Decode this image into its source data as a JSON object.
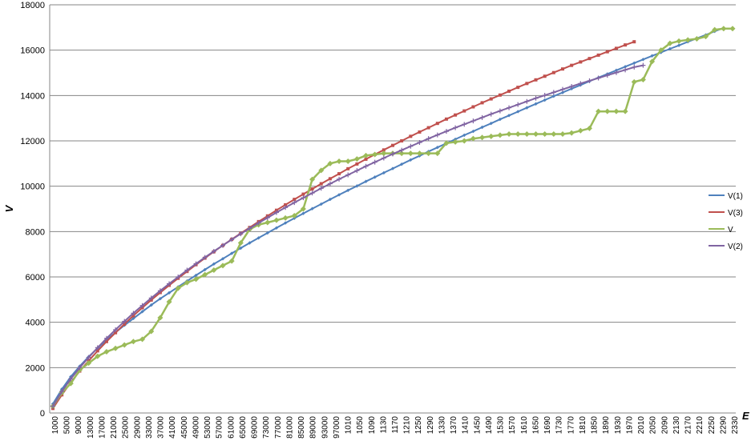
{
  "chart_data": {
    "type": "line",
    "title": "",
    "xlabel": "E",
    "ylabel": "V",
    "ylim": [
      0,
      18000
    ],
    "yticks": [
      0,
      2000,
      4000,
      6000,
      8000,
      10000,
      12000,
      14000,
      16000,
      18000
    ],
    "grid": "horizontal",
    "legend_position": "right",
    "x_tick_labels": [
      "1000",
      "5000",
      "9000",
      "13000",
      "17000",
      "21000",
      "25000",
      "29000",
      "33000",
      "37000",
      "41000",
      "45000",
      "49000",
      "53000",
      "57000",
      "61000",
      "65000",
      "69000",
      "73000",
      "77000",
      "81000",
      "85000",
      "89000",
      "93000",
      "97000",
      "1010",
      "1050",
      "1090",
      "1130",
      "1170",
      "1210",
      "1250",
      "1290",
      "1330",
      "1370",
      "1410",
      "1450",
      "1490",
      "1530",
      "1570",
      "1610",
      "1650",
      "1690",
      "1730",
      "1770",
      "1810",
      "1850",
      "1890",
      "1930",
      "1970",
      "2010",
      "2050",
      "2090",
      "2130",
      "2170",
      "2210",
      "2250",
      "2290",
      "2330"
    ],
    "series": [
      {
        "name": "V(1)",
        "color": "#4f81bd",
        "points": [
          [
            0,
            400
          ],
          [
            1,
            1050
          ],
          [
            2,
            1600
          ],
          [
            3,
            2060
          ],
          [
            4,
            2480
          ],
          [
            5,
            2860
          ],
          [
            6,
            3220
          ],
          [
            7,
            3550
          ],
          [
            8,
            3870
          ],
          [
            9,
            4170
          ],
          [
            10,
            4470
          ],
          [
            11,
            4760
          ],
          [
            12,
            5040
          ],
          [
            13,
            5300
          ],
          [
            14,
            5560
          ],
          [
            15,
            5820
          ],
          [
            16,
            6070
          ],
          [
            17,
            6320
          ],
          [
            18,
            6570
          ],
          [
            19,
            6800
          ],
          [
            20,
            7040
          ],
          [
            21,
            7270
          ],
          [
            22,
            7500
          ],
          [
            23,
            7720
          ],
          [
            24,
            7940
          ],
          [
            25,
            8160
          ],
          [
            26,
            8380
          ],
          [
            27,
            8590
          ],
          [
            28,
            8800
          ],
          [
            29,
            9010
          ],
          [
            30,
            9210
          ],
          [
            31,
            9420
          ],
          [
            32,
            9620
          ],
          [
            33,
            9820
          ],
          [
            34,
            10010
          ],
          [
            35,
            10210
          ],
          [
            36,
            10400
          ],
          [
            37,
            10590
          ],
          [
            38,
            10780
          ],
          [
            39,
            10970
          ],
          [
            40,
            11160
          ],
          [
            41,
            11340
          ],
          [
            42,
            11530
          ],
          [
            43,
            11710
          ],
          [
            44,
            11890
          ],
          [
            45,
            12070
          ],
          [
            46,
            12250
          ],
          [
            47,
            12420
          ],
          [
            48,
            12600
          ],
          [
            49,
            12770
          ],
          [
            50,
            12950
          ],
          [
            51,
            13120
          ],
          [
            52,
            13290
          ],
          [
            53,
            13460
          ],
          [
            54,
            13630
          ],
          [
            55,
            13800
          ],
          [
            56,
            13970
          ],
          [
            57,
            14130
          ],
          [
            58,
            14300
          ],
          [
            59,
            14460
          ],
          [
            60,
            14630
          ],
          [
            61,
            14790
          ],
          [
            62,
            14950
          ],
          [
            63,
            15110
          ],
          [
            64,
            15270
          ],
          [
            65,
            15430
          ],
          [
            66,
            15590
          ],
          [
            67,
            15750
          ],
          [
            68,
            15900
          ],
          [
            69,
            16060
          ],
          [
            70,
            16210
          ],
          [
            71,
            16370
          ],
          [
            72,
            16520
          ],
          [
            73,
            16670
          ],
          [
            74,
            16830
          ],
          [
            75,
            16980
          ]
        ]
      },
      {
        "name": "V(3)",
        "color": "#c0504d",
        "points": [
          [
            0,
            200
          ],
          [
            1,
            800
          ],
          [
            2,
            1350
          ],
          [
            3,
            1850
          ],
          [
            4,
            2300
          ],
          [
            5,
            2740
          ],
          [
            6,
            3150
          ],
          [
            7,
            3540
          ],
          [
            8,
            3920
          ],
          [
            9,
            4290
          ],
          [
            10,
            4640
          ],
          [
            11,
            4980
          ],
          [
            12,
            5310
          ],
          [
            13,
            5630
          ],
          [
            14,
            5940
          ],
          [
            15,
            6240
          ],
          [
            16,
            6540
          ],
          [
            17,
            6830
          ],
          [
            18,
            7110
          ],
          [
            19,
            7390
          ],
          [
            20,
            7660
          ],
          [
            21,
            7920
          ],
          [
            22,
            8180
          ],
          [
            23,
            8440
          ],
          [
            24,
            8690
          ],
          [
            25,
            8940
          ],
          [
            26,
            9180
          ],
          [
            27,
            9420
          ],
          [
            28,
            9650
          ],
          [
            29,
            9880
          ],
          [
            30,
            10110
          ],
          [
            31,
            10330
          ],
          [
            32,
            10550
          ],
          [
            33,
            10770
          ],
          [
            34,
            10980
          ],
          [
            35,
            11190
          ],
          [
            36,
            11400
          ],
          [
            37,
            11600
          ],
          [
            38,
            11800
          ],
          [
            39,
            12000
          ],
          [
            40,
            12200
          ],
          [
            41,
            12390
          ],
          [
            42,
            12580
          ],
          [
            43,
            12770
          ],
          [
            44,
            12960
          ],
          [
            45,
            13140
          ],
          [
            46,
            13320
          ],
          [
            47,
            13500
          ],
          [
            48,
            13680
          ],
          [
            49,
            13850
          ],
          [
            50,
            14020
          ],
          [
            51,
            14190
          ],
          [
            52,
            14360
          ],
          [
            53,
            14530
          ],
          [
            54,
            14690
          ],
          [
            55,
            14850
          ],
          [
            56,
            15010
          ],
          [
            57,
            15170
          ],
          [
            58,
            15330
          ],
          [
            59,
            15480
          ],
          [
            60,
            15630
          ],
          [
            61,
            15780
          ],
          [
            62,
            15930
          ],
          [
            63,
            16080
          ],
          [
            64,
            16230
          ],
          [
            65,
            16370
          ]
        ]
      },
      {
        "name": "V",
        "color": "#9bbb59",
        "points": [
          [
            0,
            300
          ],
          [
            1,
            900
          ],
          [
            2,
            1300
          ],
          [
            3,
            1900
          ],
          [
            4,
            2200
          ],
          [
            5,
            2500
          ],
          [
            6,
            2700
          ],
          [
            7,
            2850
          ],
          [
            8,
            3000
          ],
          [
            9,
            3150
          ],
          [
            10,
            3250
          ],
          [
            11,
            3600
          ],
          [
            12,
            4200
          ],
          [
            13,
            4900
          ],
          [
            14,
            5500
          ],
          [
            15,
            5750
          ],
          [
            16,
            5900
          ],
          [
            17,
            6100
          ],
          [
            18,
            6300
          ],
          [
            19,
            6500
          ],
          [
            20,
            6700
          ],
          [
            21,
            7500
          ],
          [
            22,
            8100
          ],
          [
            23,
            8300
          ],
          [
            24,
            8400
          ],
          [
            25,
            8500
          ],
          [
            26,
            8600
          ],
          [
            27,
            8700
          ],
          [
            28,
            9000
          ],
          [
            29,
            10300
          ],
          [
            30,
            10700
          ],
          [
            31,
            11000
          ],
          [
            32,
            11100
          ],
          [
            33,
            11100
          ],
          [
            34,
            11200
          ],
          [
            35,
            11350
          ],
          [
            36,
            11400
          ],
          [
            37,
            11450
          ],
          [
            38,
            11450
          ],
          [
            39,
            11450
          ],
          [
            40,
            11450
          ],
          [
            41,
            11450
          ],
          [
            42,
            11450
          ],
          [
            43,
            11450
          ],
          [
            44,
            11900
          ],
          [
            45,
            11950
          ],
          [
            46,
            12000
          ],
          [
            47,
            12100
          ],
          [
            48,
            12150
          ],
          [
            49,
            12200
          ],
          [
            50,
            12250
          ],
          [
            51,
            12300
          ],
          [
            52,
            12300
          ],
          [
            53,
            12300
          ],
          [
            54,
            12300
          ],
          [
            55,
            12300
          ],
          [
            56,
            12300
          ],
          [
            57,
            12300
          ],
          [
            58,
            12350
          ],
          [
            59,
            12450
          ],
          [
            60,
            12550
          ],
          [
            61,
            13300
          ],
          [
            62,
            13300
          ],
          [
            63,
            13300
          ],
          [
            64,
            13300
          ],
          [
            65,
            14600
          ],
          [
            66,
            14700
          ],
          [
            67,
            15500
          ],
          [
            68,
            16000
          ],
          [
            69,
            16300
          ],
          [
            70,
            16400
          ],
          [
            71,
            16450
          ],
          [
            72,
            16500
          ],
          [
            73,
            16600
          ],
          [
            74,
            16900
          ],
          [
            75,
            16950
          ],
          [
            76,
            16950
          ]
        ]
      },
      {
        "name": "V(2)",
        "color": "#8064a2",
        "points": [
          [
            0,
            300
          ],
          [
            1,
            950
          ],
          [
            2,
            1500
          ],
          [
            3,
            2000
          ],
          [
            4,
            2450
          ],
          [
            5,
            2880
          ],
          [
            6,
            3290
          ],
          [
            7,
            3670
          ],
          [
            8,
            4040
          ],
          [
            9,
            4400
          ],
          [
            10,
            4740
          ],
          [
            11,
            5070
          ],
          [
            12,
            5390
          ],
          [
            13,
            5700
          ],
          [
            14,
            6000
          ],
          [
            15,
            6300
          ],
          [
            16,
            6580
          ],
          [
            17,
            6860
          ],
          [
            18,
            7130
          ],
          [
            19,
            7390
          ],
          [
            20,
            7650
          ],
          [
            21,
            7900
          ],
          [
            22,
            8140
          ],
          [
            23,
            8380
          ],
          [
            24,
            8610
          ],
          [
            25,
            8840
          ],
          [
            26,
            9060
          ],
          [
            27,
            9280
          ],
          [
            28,
            9490
          ],
          [
            29,
            9700
          ],
          [
            30,
            9910
          ],
          [
            31,
            10110
          ],
          [
            32,
            10310
          ],
          [
            33,
            10500
          ],
          [
            34,
            10690
          ],
          [
            35,
            10880
          ],
          [
            36,
            11060
          ],
          [
            37,
            11240
          ],
          [
            38,
            11420
          ],
          [
            39,
            11590
          ],
          [
            40,
            11760
          ],
          [
            41,
            11930
          ],
          [
            42,
            12100
          ],
          [
            43,
            12260
          ],
          [
            44,
            12420
          ],
          [
            45,
            12580
          ],
          [
            46,
            12730
          ],
          [
            47,
            12880
          ],
          [
            48,
            13030
          ],
          [
            49,
            13180
          ],
          [
            50,
            13320
          ],
          [
            51,
            13460
          ],
          [
            52,
            13600
          ],
          [
            53,
            13740
          ],
          [
            54,
            13880
          ],
          [
            55,
            14010
          ],
          [
            56,
            14140
          ],
          [
            57,
            14270
          ],
          [
            58,
            14400
          ],
          [
            59,
            14530
          ],
          [
            60,
            14650
          ],
          [
            61,
            14770
          ],
          [
            62,
            14890
          ],
          [
            63,
            15010
          ],
          [
            64,
            15130
          ],
          [
            65,
            15250
          ],
          [
            66,
            15330
          ]
        ]
      }
    ]
  }
}
